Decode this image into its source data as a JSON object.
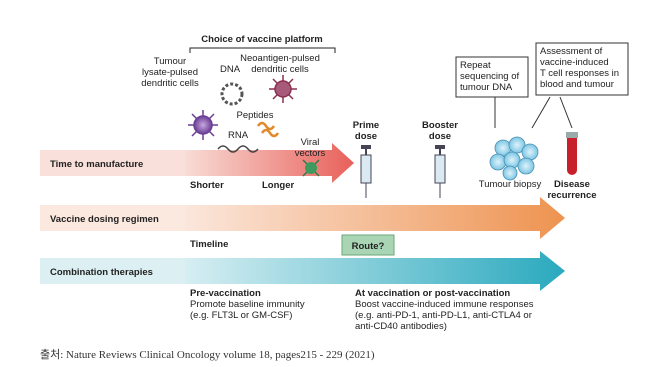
{
  "platform": {
    "title": "Choice of vaccine platform",
    "tumour_lysate": [
      "Tumour",
      "lysate-pulsed",
      "dendritic cells"
    ],
    "dna": "DNA",
    "rna": "RNA",
    "peptides": "Peptides",
    "viral_vectors": [
      "Viral",
      "vectors"
    ],
    "neoantigen": [
      "Neoantigen-pulsed",
      "dendritic cells"
    ]
  },
  "rows": [
    {
      "label": "Time to manufacture",
      "left": "Shorter",
      "right": "Longer"
    },
    {
      "label": "Vaccine dosing regimen",
      "left": "Timeline",
      "box": "Route?"
    },
    {
      "label": "Combination therapies"
    }
  ],
  "doses": {
    "prime": [
      "Prime",
      "dose"
    ],
    "booster": [
      "Booster",
      "dose"
    ]
  },
  "boxes": {
    "sequencing": [
      "Repeat",
      "sequencing of",
      "tumour DNA"
    ],
    "assessment": [
      "Assessment of",
      "vaccine-induced",
      "T cell responses in",
      "blood and tumour"
    ]
  },
  "biopsy": "Tumour biopsy",
  "recurrence": [
    "Disease",
    "recurrence"
  ],
  "pre": {
    "title": "Pre-vaccination",
    "lines": [
      "Promote baseline immunity",
      "(e.g. FLT3L or GM-CSF)"
    ]
  },
  "post": {
    "title": "At vaccination or post-vaccination",
    "lines": [
      "Boost vaccine-induced immune responses",
      "(e.g. anti-PD-1, anti-PD-L1, anti-CTLA4 or",
      "anti-CD40 antibodies)"
    ]
  },
  "caption": "출처: Nature Reviews Clinical Oncology volume 18, pages215 - 229 (2021)"
}
